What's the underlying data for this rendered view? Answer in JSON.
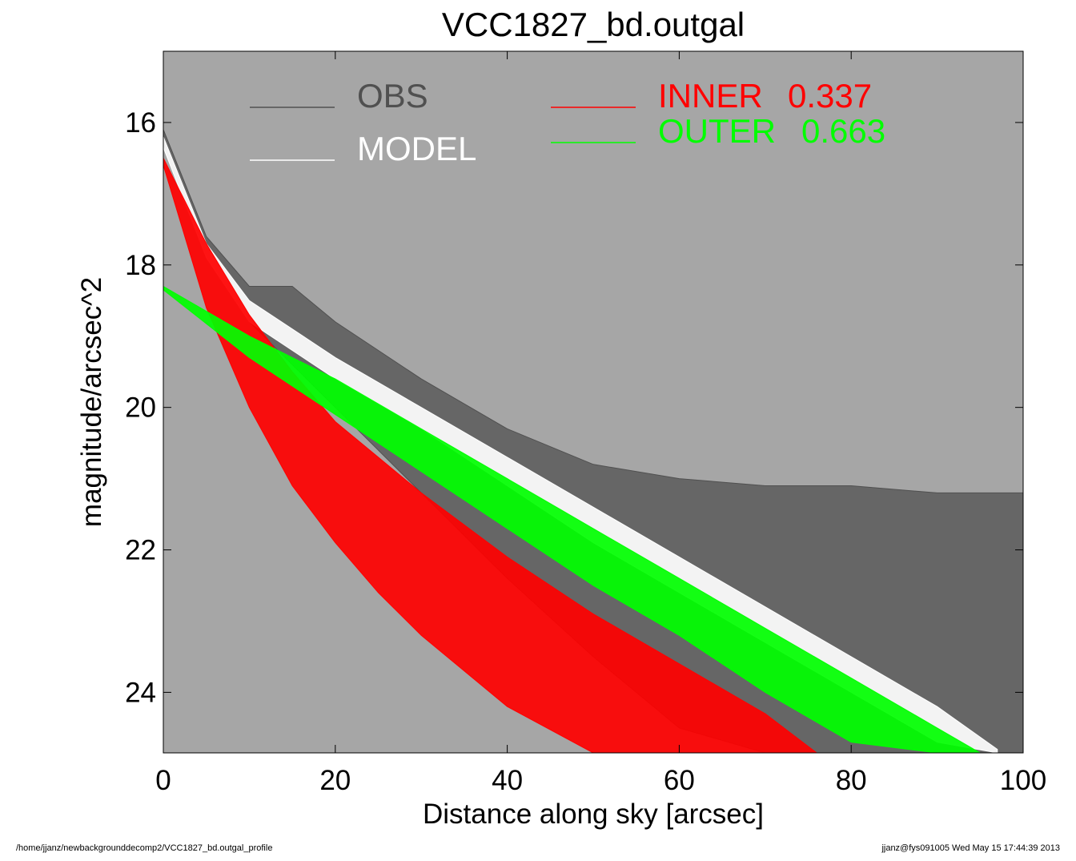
{
  "colors": {
    "background": "#a6a6a6",
    "obs": "#505050",
    "model": "#ffffff",
    "inner": "#ff0000",
    "outer": "#00ff00"
  },
  "footer": {
    "left": "/home/jjanz/newbackgrounddecomp2/VCC1827_bd.outgal_profile",
    "right": "jjanz@fys091005  Wed May 15 17:44:39 2013"
  },
  "chart_data": {
    "type": "scatter",
    "title": "VCC1827_bd.outgal",
    "xlabel": "Distance along sky [arcsec]",
    "ylabel": "magnitude/arcsec^2",
    "xlim": [
      0,
      100
    ],
    "ylim": [
      24.85,
      15.0
    ],
    "y_inverted": true,
    "grid": false,
    "legend_placement": "top",
    "xticks": [
      "0",
      "20",
      "40",
      "60",
      "80",
      "100"
    ],
    "xtick_values": [
      0,
      20,
      40,
      60,
      80,
      100
    ],
    "yticks": [
      "16",
      "18",
      "20",
      "22",
      "24"
    ],
    "ytick_values": [
      16,
      18,
      20,
      22,
      24
    ],
    "legend": [
      {
        "label": "OBS",
        "value": ""
      },
      {
        "label": "MODEL",
        "value": ""
      },
      {
        "label": "INNER",
        "value": "0.337"
      },
      {
        "label": "OUTER",
        "value": "0.663"
      }
    ],
    "series": [
      {
        "name": "OBS",
        "x": [
          0,
          5,
          10,
          15,
          20,
          30,
          40,
          50,
          60,
          70,
          80,
          90,
          100
        ],
        "y_upper": [
          16.1,
          17.6,
          18.3,
          18.3,
          18.8,
          19.6,
          20.3,
          20.8,
          21.0,
          21.1,
          21.1,
          21.2,
          21.2
        ],
        "y_lower": [
          16.3,
          17.9,
          18.8,
          19.4,
          20.0,
          21.2,
          22.4,
          23.5,
          24.5,
          24.85,
          24.85,
          24.85,
          24.85
        ]
      },
      {
        "name": "MODEL",
        "x": [
          0,
          5,
          10,
          15,
          20,
          30,
          40,
          50,
          60,
          70,
          80,
          90,
          97
        ],
        "y_upper": [
          16.2,
          17.7,
          18.5,
          18.9,
          19.3,
          20.0,
          20.7,
          21.4,
          22.1,
          22.8,
          23.5,
          24.2,
          24.8
        ],
        "y_lower": [
          16.35,
          17.9,
          18.8,
          19.2,
          19.6,
          20.3,
          21.1,
          21.9,
          22.6,
          23.3,
          24.0,
          24.7,
          24.85
        ]
      },
      {
        "name": "INNER",
        "x": [
          0,
          5,
          10,
          15,
          20,
          25,
          30,
          40,
          50,
          60,
          70,
          76
        ],
        "y_upper": [
          16.5,
          17.7,
          18.7,
          19.5,
          20.2,
          20.7,
          21.2,
          22.1,
          22.9,
          23.6,
          24.3,
          24.85
        ],
        "y_lower": [
          16.6,
          18.6,
          20.0,
          21.1,
          21.9,
          22.6,
          23.2,
          24.2,
          24.85,
          24.85,
          24.85,
          24.85
        ]
      },
      {
        "name": "OUTER",
        "x": [
          0,
          10,
          20,
          30,
          40,
          50,
          60,
          70,
          80,
          90,
          95
        ],
        "y_upper": [
          18.3,
          19.0,
          19.6,
          20.3,
          21.0,
          21.7,
          22.4,
          23.1,
          23.8,
          24.5,
          24.85
        ],
        "y_lower": [
          18.35,
          19.3,
          20.1,
          20.9,
          21.7,
          22.5,
          23.2,
          24.0,
          24.7,
          24.85,
          24.85
        ]
      }
    ]
  }
}
